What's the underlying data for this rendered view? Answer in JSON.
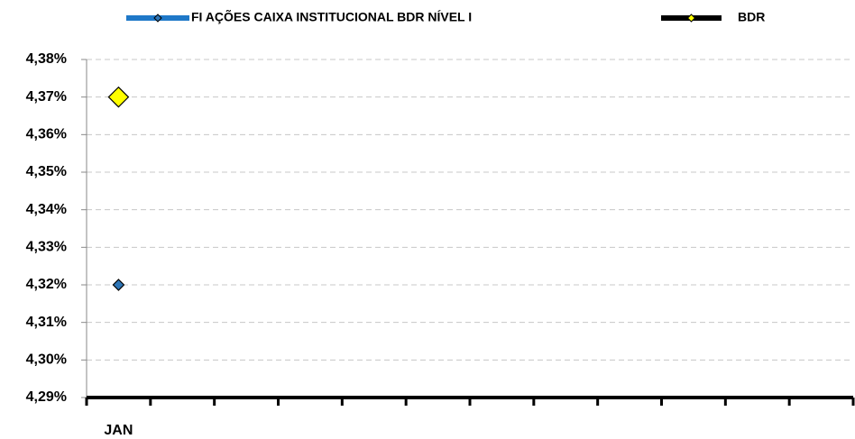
{
  "chart_data": {
    "type": "line",
    "categories": [
      "JAN",
      null,
      null,
      null,
      null,
      null,
      null,
      null,
      null,
      null,
      null,
      null
    ],
    "series": [
      {
        "name": "FI AÇÕES CAIXA INSTITUCIONAL BDR NÍVEL I",
        "color": "#1f78c8",
        "marker_color": "#2e75b6",
        "values": [
          4.32,
          null,
          null,
          null,
          null,
          null,
          null,
          null,
          null,
          null,
          null,
          null
        ]
      },
      {
        "name": "BDR",
        "color": "#000000",
        "marker_color": "#ffff00",
        "values": [
          4.37,
          null,
          null,
          null,
          null,
          null,
          null,
          null,
          null,
          null,
          null,
          null
        ]
      }
    ],
    "ylim": [
      4.29,
      4.38
    ],
    "yticks": [
      {
        "value": 4.29,
        "label": "4,29%"
      },
      {
        "value": 4.3,
        "label": "4,30%"
      },
      {
        "value": 4.31,
        "label": "4,31%"
      },
      {
        "value": 4.32,
        "label": "4,32%"
      },
      {
        "value": 4.33,
        "label": "4,33%"
      },
      {
        "value": 4.34,
        "label": "4,34%"
      },
      {
        "value": 4.35,
        "label": "4,35%"
      },
      {
        "value": 4.36,
        "label": "4,36%"
      },
      {
        "value": 4.37,
        "label": "4,37%"
      },
      {
        "value": 4.38,
        "label": "4,38%"
      }
    ],
    "grid": true,
    "legend": "top"
  }
}
